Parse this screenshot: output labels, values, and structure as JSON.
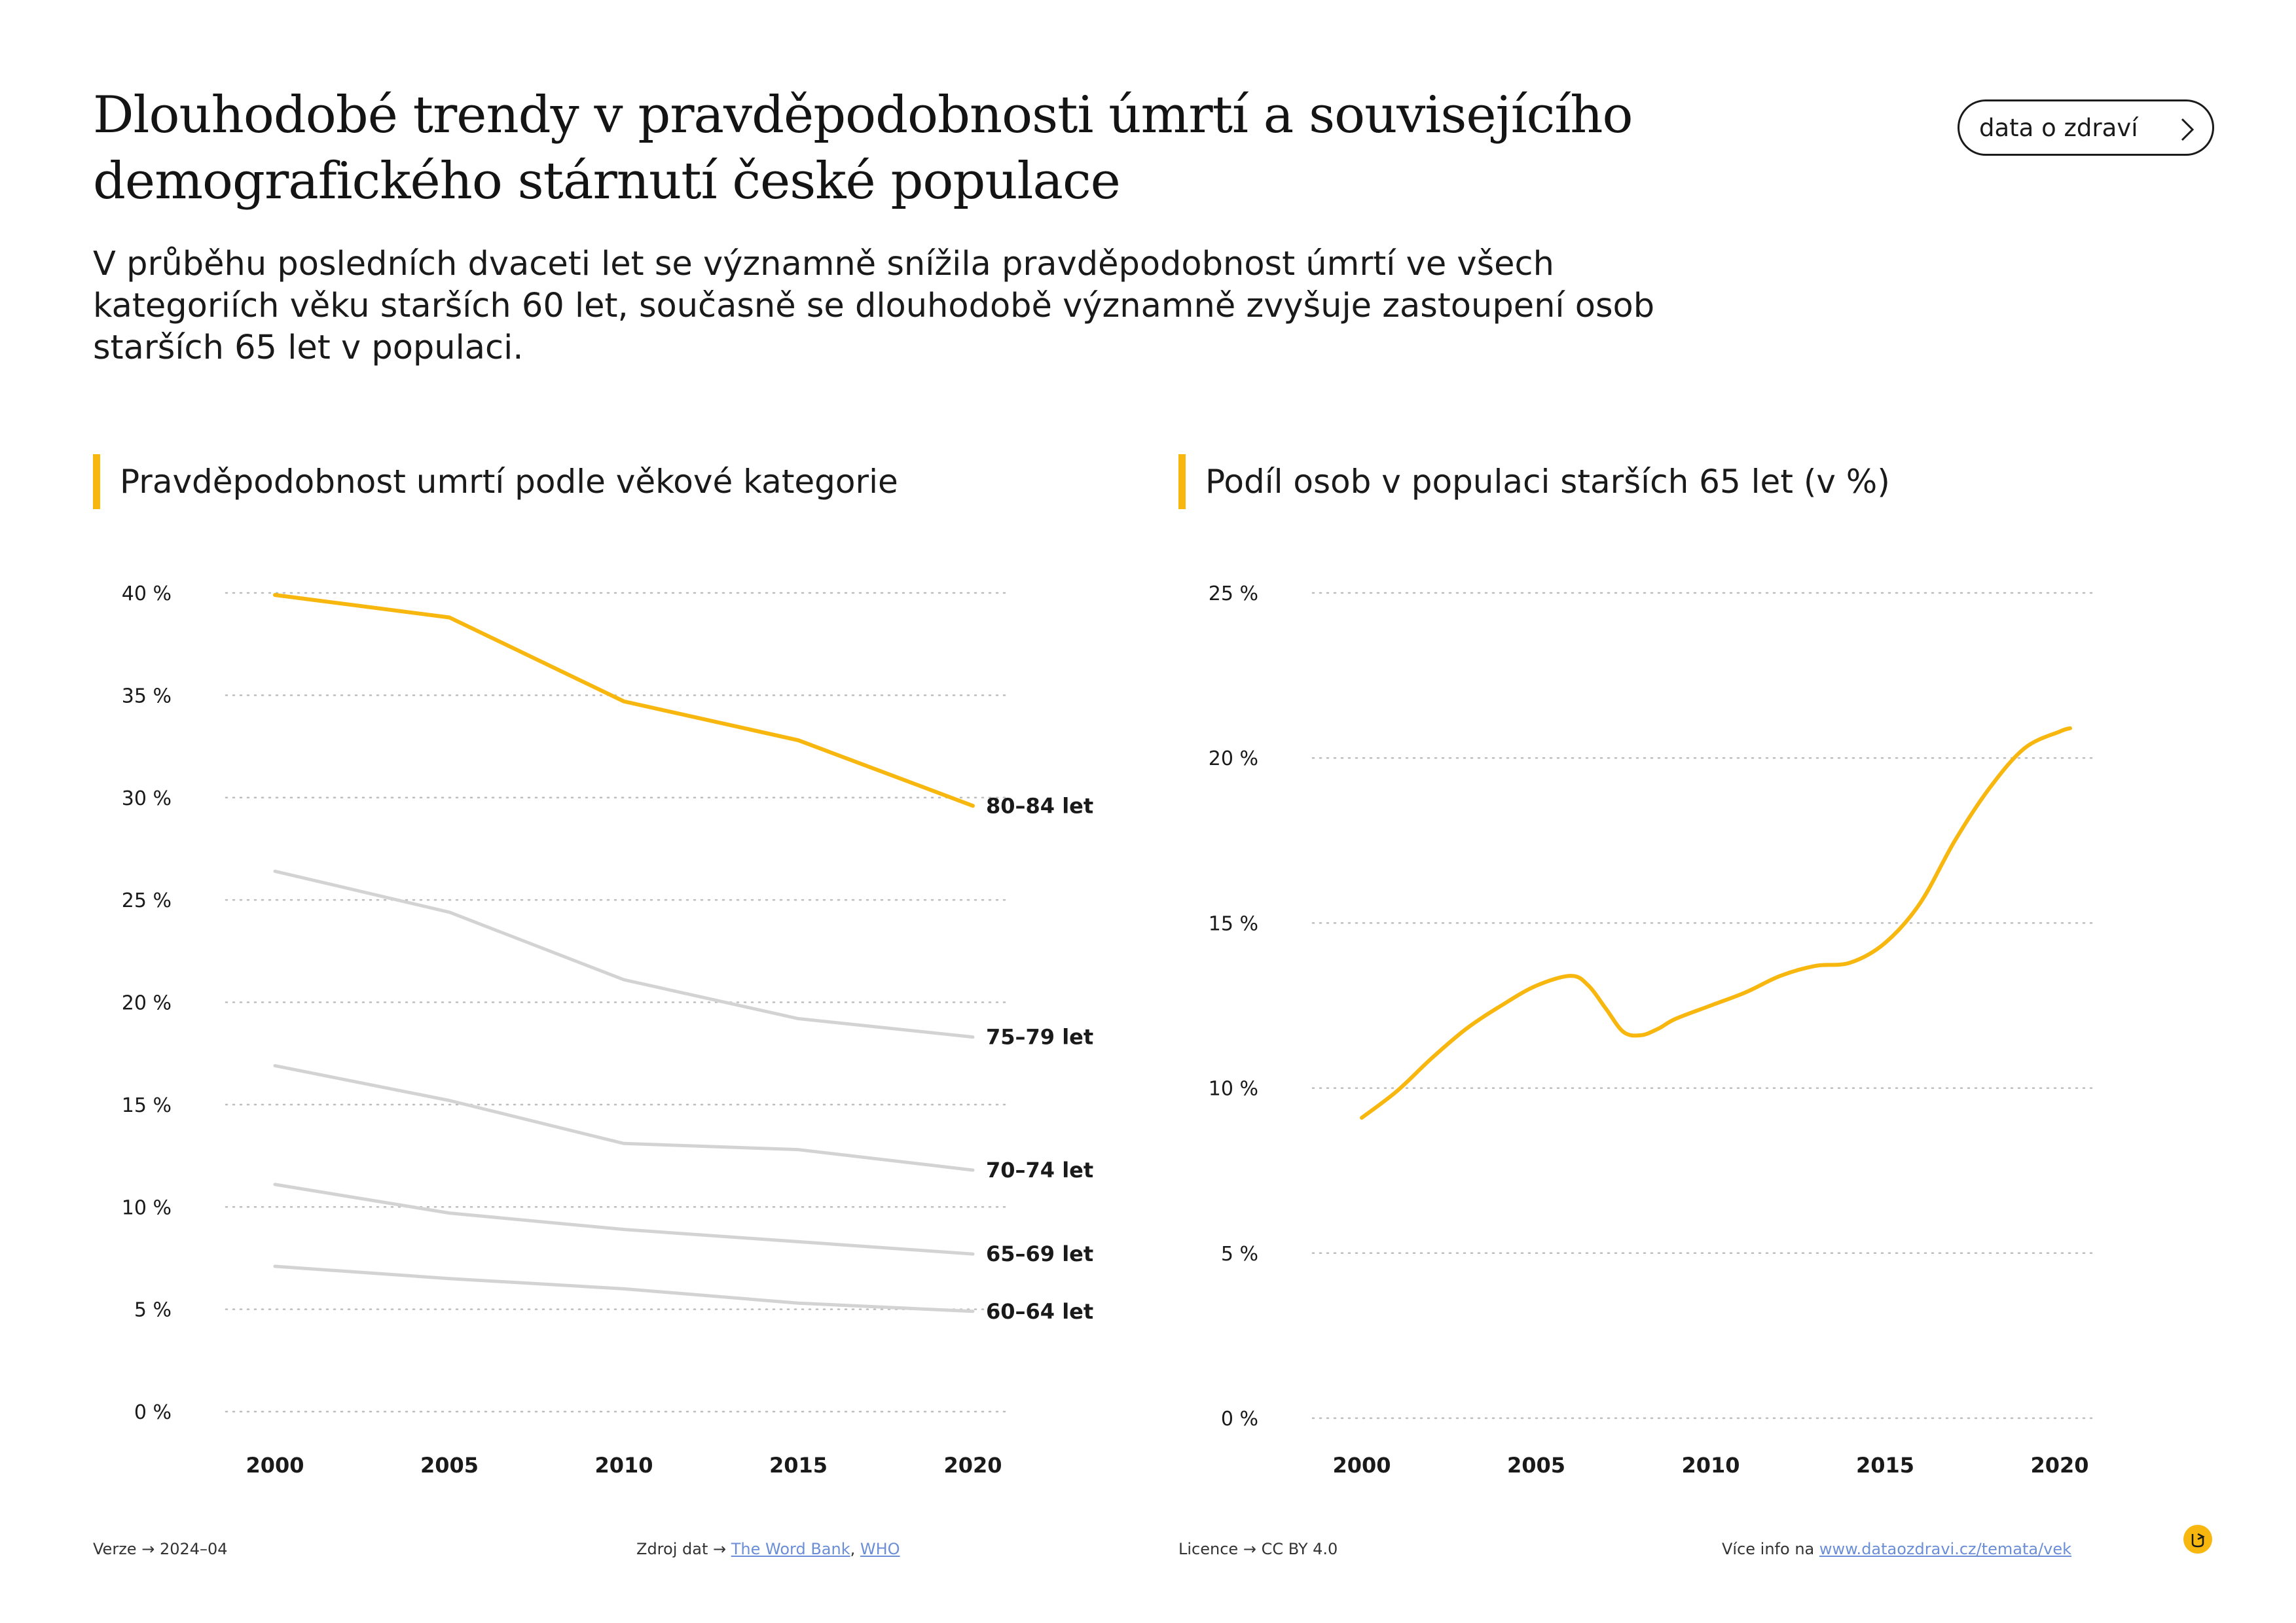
{
  "header": {
    "title": "Dlouhodobé trendy v pravděpodobnosti úmrtí a souvisejícího demografického stárnutí české populace",
    "subtitle": "V průběhu posledních dvaceti let se významně snížila pravděpodobnost úmrtí ve všech kategoriích věku starších 60 let, současně se dlouhodobě významně zvyšuje zastoupení osob starších 65 let v populaci.",
    "link_label": "data o zdraví"
  },
  "colors": {
    "accent": "#f7b70e",
    "muted": "#d3d3d3",
    "text": "#141414",
    "link": "#6b8ed6"
  },
  "chart_data": [
    {
      "type": "line",
      "title": "Pravděpodobnost umrtí podle věkové kategorie",
      "x_ticks": [
        "2000",
        "2005",
        "2010",
        "2015",
        "2020"
      ],
      "y_ticks": [
        "0 %",
        "5 %",
        "10 %",
        "15 %",
        "20 %",
        "25 %",
        "30 %",
        "35 %",
        "40 %"
      ],
      "xlim": [
        2000,
        2020
      ],
      "ylim": [
        0,
        40
      ],
      "grid": "horizontal dotted",
      "series": [
        {
          "name": "80–84 let",
          "color": "#f7b70e",
          "x": [
            2000,
            2005,
            2010,
            2015,
            2020
          ],
          "y": [
            39.9,
            38.8,
            34.7,
            32.8,
            29.6
          ]
        },
        {
          "name": "75–79 let",
          "color": "#d3d3d3",
          "x": [
            2000,
            2005,
            2010,
            2015,
            2020
          ],
          "y": [
            26.4,
            24.4,
            21.1,
            19.2,
            18.3
          ]
        },
        {
          "name": "70–74 let",
          "color": "#d3d3d3",
          "x": [
            2000,
            2005,
            2010,
            2015,
            2020
          ],
          "y": [
            16.9,
            15.2,
            13.1,
            12.8,
            11.8
          ]
        },
        {
          "name": "65–69 let",
          "color": "#d3d3d3",
          "x": [
            2000,
            2005,
            2010,
            2015,
            2020
          ],
          "y": [
            11.1,
            9.7,
            8.9,
            8.3,
            7.7
          ]
        },
        {
          "name": "60–64 let",
          "color": "#d3d3d3",
          "x": [
            2000,
            2005,
            2010,
            2015,
            2020
          ],
          "y": [
            7.1,
            6.5,
            6.0,
            5.3,
            4.9
          ]
        }
      ]
    },
    {
      "type": "line",
      "title": "Podíl osob v populaci starších 65 let (v %)",
      "x_ticks": [
        "2000",
        "2005",
        "2010",
        "2015",
        "2020"
      ],
      "y_ticks": [
        "0 %",
        "5 %",
        "10 %",
        "15 %",
        "20 %",
        "25 %"
      ],
      "xlim": [
        2000,
        2020
      ],
      "ylim": [
        0,
        25
      ],
      "grid": "horizontal dotted",
      "series": [
        {
          "color": "#f7b70e",
          "x": [
            2000,
            2001,
            2002,
            2003,
            2004,
            2005,
            2006,
            2006.5,
            2007,
            2007.5,
            2008,
            2008.5,
            2009,
            2010,
            2011,
            2012,
            2013,
            2014,
            2015,
            2016,
            2017,
            2018,
            2019,
            2020,
            2020.3
          ],
          "y": [
            9.1,
            9.9,
            10.9,
            11.8,
            12.5,
            13.1,
            13.4,
            13.1,
            12.4,
            11.7,
            11.6,
            11.8,
            12.1,
            12.5,
            12.9,
            13.4,
            13.7,
            13.8,
            14.4,
            15.6,
            17.5,
            19.1,
            20.3,
            20.8,
            20.9
          ]
        }
      ]
    }
  ],
  "footer": {
    "version_label": "Verze",
    "version_value": "2024–04",
    "source_label": "Zdroj dat",
    "source_link1": "The Word Bank",
    "source_sep": ",",
    "source_link2": "WHO",
    "license_label": "Licence",
    "license_value": "CC BY 4.0",
    "more_label": "Více info na",
    "more_link": "www.dataozdravi.cz/temata/vek",
    "arrow": "→"
  }
}
